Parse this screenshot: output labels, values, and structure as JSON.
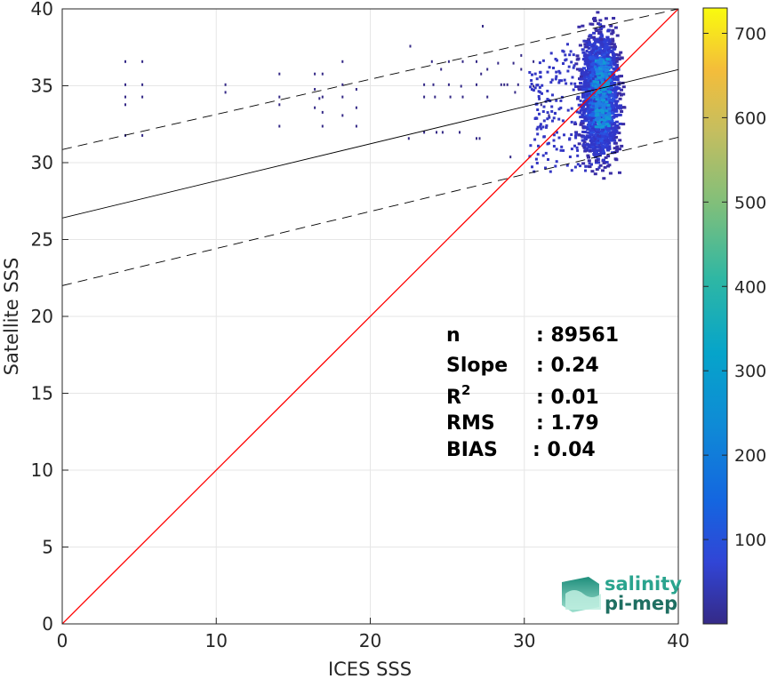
{
  "chart_data": {
    "type": "heatmap",
    "xlabel": "ICES SSS",
    "ylabel": "Satellite SSS",
    "xlim": [
      0,
      40
    ],
    "ylim": [
      0,
      40
    ],
    "xticks": [
      "0",
      "10",
      "20",
      "30",
      "40"
    ],
    "yticks": [
      "0",
      "5",
      "10",
      "15",
      "20",
      "25",
      "30",
      "35",
      "40"
    ],
    "grid": true,
    "colormap": "parula",
    "colorbar": {
      "range": [
        0,
        730
      ],
      "ticks": [
        "100",
        "200",
        "300",
        "400",
        "500",
        "600",
        "700"
      ]
    },
    "lines": {
      "identity": {
        "color": "#ff0000",
        "x": [
          0,
          40
        ],
        "y": [
          0,
          40
        ]
      },
      "regression": {
        "color": "#000000",
        "style": "solid",
        "x": [
          0,
          40
        ],
        "y": [
          26.4,
          36.05
        ]
      },
      "upper_bound": {
        "color": "#000000",
        "style": "dashed",
        "x": [
          0,
          40
        ],
        "y": [
          30.85,
          40.0
        ]
      },
      "lower_bound": {
        "color": "#000000",
        "style": "dashed",
        "x": [
          0,
          40
        ],
        "y": [
          22.0,
          31.65
        ]
      }
    },
    "density_core": {
      "x_center": 34.8,
      "y_center": 34.5,
      "y_range": [
        26.5,
        39.9
      ]
    },
    "scattered_points": [
      [
        4.1,
        36.6
      ],
      [
        4.1,
        35.1
      ],
      [
        4.1,
        34.3
      ],
      [
        4.1,
        33.8
      ],
      [
        4.1,
        31.8
      ],
      [
        5.2,
        36.6
      ],
      [
        5.2,
        35.1
      ],
      [
        5.2,
        34.3
      ],
      [
        5.2,
        31.8
      ],
      [
        10.6,
        34.6
      ],
      [
        10.6,
        35.1
      ],
      [
        14.1,
        35.8
      ],
      [
        14.1,
        34.3
      ],
      [
        14.1,
        33.8
      ],
      [
        14.1,
        32.4
      ],
      [
        16.4,
        35.8
      ],
      [
        16.4,
        34.8
      ],
      [
        16.4,
        33.6
      ],
      [
        16.7,
        34.2
      ],
      [
        16.9,
        35.8
      ],
      [
        16.9,
        34.3
      ],
      [
        16.9,
        33.3
      ],
      [
        16.9,
        32.4
      ],
      [
        18.2,
        36.6
      ],
      [
        18.2,
        35.1
      ],
      [
        18.2,
        34.3
      ],
      [
        18.2,
        33.1
      ],
      [
        19.1,
        34.8
      ],
      [
        19.1,
        33.6
      ],
      [
        19.1,
        32.4
      ],
      [
        22.6,
        37.6
      ],
      [
        22.5,
        31.6
      ],
      [
        23.5,
        35.1
      ],
      [
        23.5,
        34.3
      ],
      [
        23.5,
        32.0
      ],
      [
        24.0,
        36.6
      ],
      [
        24.1,
        35.1
      ],
      [
        24.2,
        34.3
      ],
      [
        24.3,
        32.0
      ],
      [
        24.6,
        36.1
      ],
      [
        24.7,
        32.0
      ],
      [
        25.1,
        36.6
      ],
      [
        25.1,
        35.1
      ],
      [
        25.2,
        34.3
      ],
      [
        25.8,
        32.0
      ],
      [
        25.9,
        35.0
      ],
      [
        26.0,
        34.3
      ],
      [
        26.0,
        36.6
      ],
      [
        26.9,
        36.6
      ],
      [
        26.9,
        35.1
      ],
      [
        26.9,
        31.6
      ],
      [
        27.1,
        31.6
      ],
      [
        27.2,
        35.8
      ],
      [
        27.3,
        38.9
      ],
      [
        27.6,
        36.1
      ],
      [
        27.6,
        34.3
      ],
      [
        28.3,
        36.5
      ],
      [
        28.5,
        35.1
      ],
      [
        28.7,
        35.1
      ],
      [
        28.9,
        35.1
      ],
      [
        29.3,
        36.5
      ],
      [
        29.4,
        34.6
      ],
      [
        29.6,
        35.1
      ],
      [
        29.8,
        36.1
      ],
      [
        29.8,
        37.0
      ],
      [
        29.1,
        30.4
      ],
      [
        30.6,
        36.6
      ],
      [
        30.6,
        35.0
      ],
      [
        31.1,
        33.8
      ],
      [
        31.6,
        33.1
      ]
    ],
    "stats": [
      {
        "label": "n",
        "value": ": 89561"
      },
      {
        "label": "Slope",
        "value": ": 0.24"
      },
      {
        "label": "R",
        "sup": "2",
        "value": ": 0.01"
      },
      {
        "label": "RMS",
        "value": ": 1.79"
      },
      {
        "label": "BIAS",
        "value": ": 0.04"
      }
    ]
  },
  "logo": {
    "line1": "salinity",
    "line2": "pi-mep"
  }
}
